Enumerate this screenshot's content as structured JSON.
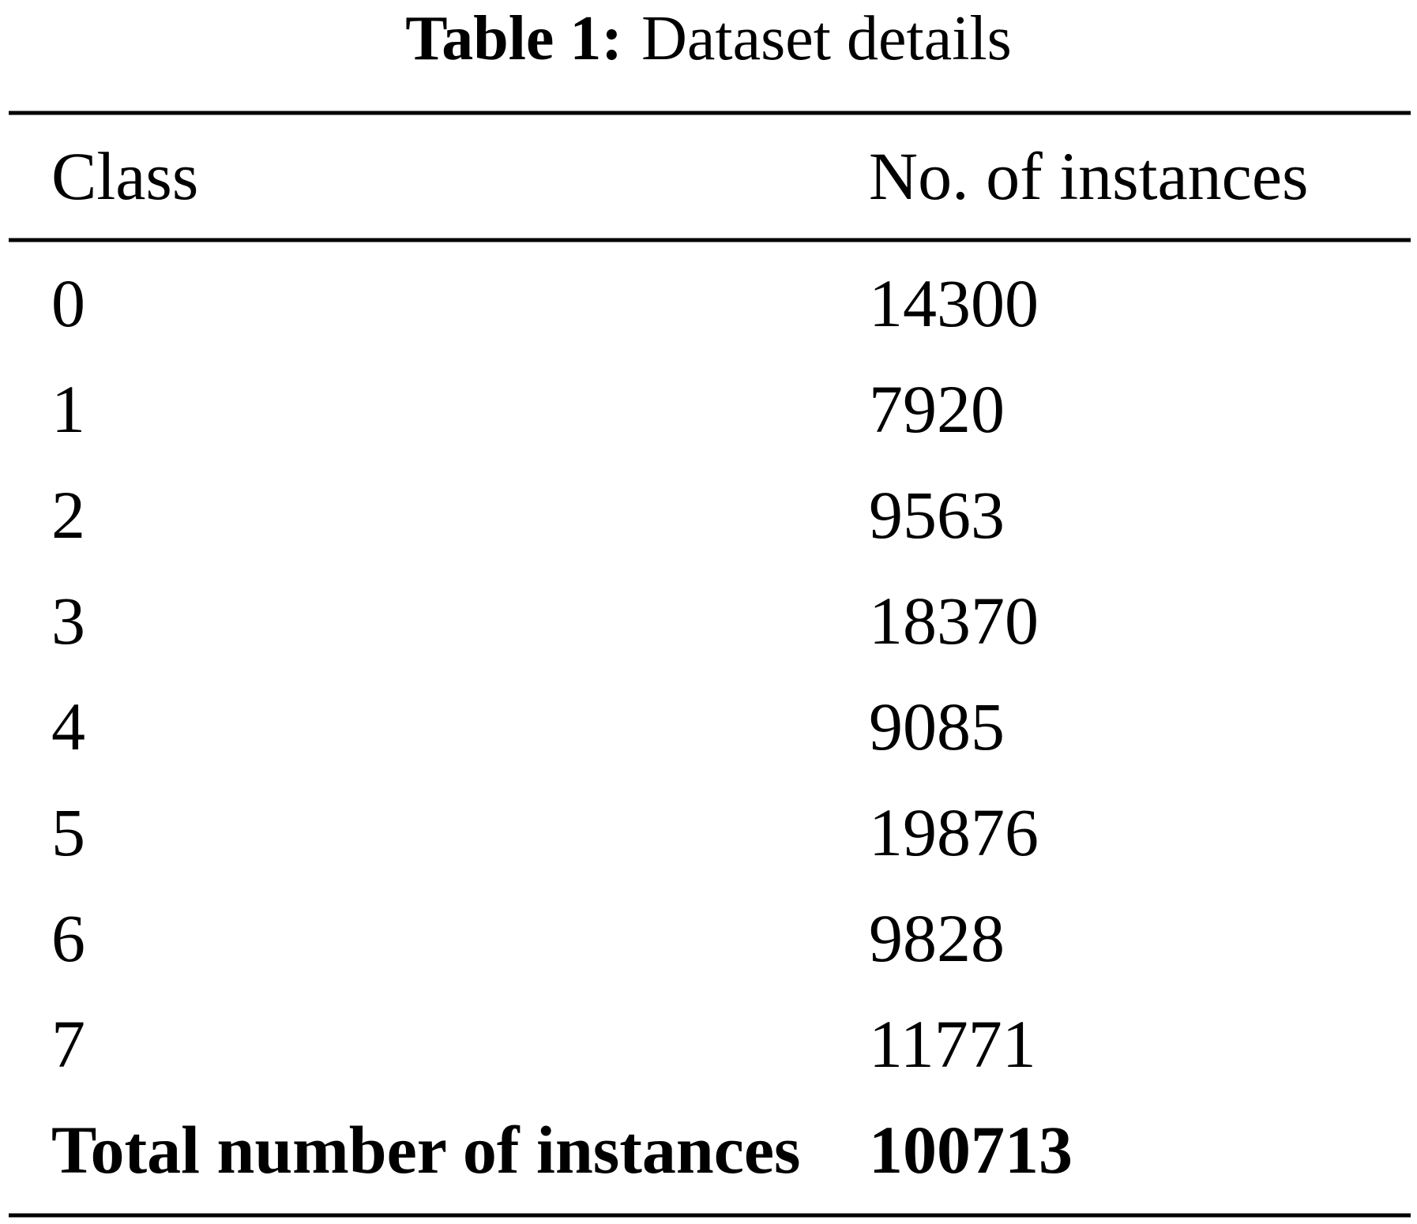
{
  "caption": {
    "label": "Table 1:",
    "title": "Dataset details"
  },
  "table": {
    "header": [
      "Class",
      "No. of instances"
    ],
    "rows": [
      [
        0,
        14300
      ],
      [
        1,
        7920
      ],
      [
        2,
        9563
      ],
      [
        3,
        18370
      ],
      [
        4,
        9085
      ],
      [
        5,
        19876
      ],
      [
        6,
        9828
      ],
      [
        7,
        11771
      ]
    ],
    "total": [
      "Total number of instances",
      100713
    ]
  }
}
